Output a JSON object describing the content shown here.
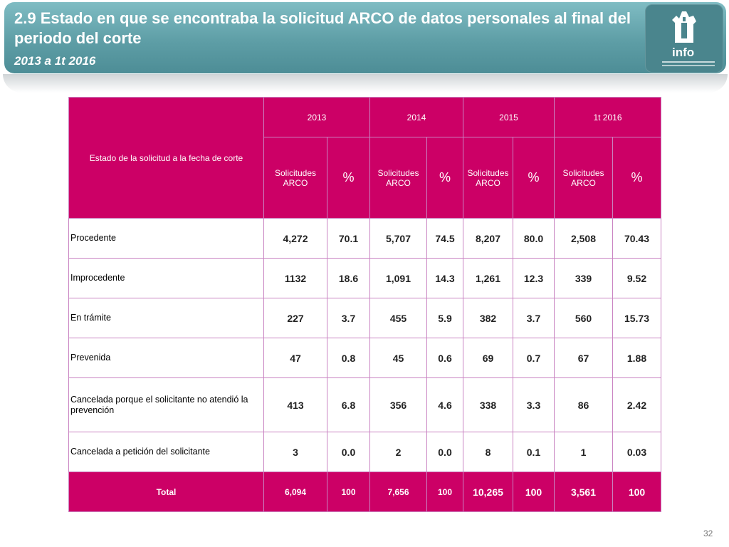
{
  "header": {
    "title": "2.9 Estado en que se encontraba la solicitud ARCO de datos personales al final del periodo del corte",
    "subtitle": "2013 a 1t 2016",
    "logo_text": "info"
  },
  "table": {
    "row_header": "Estado de la solicitud a la fecha de corte",
    "years": [
      "2013",
      "2014",
      "2015",
      "1t 2016"
    ],
    "sub_solicitudes": "Solicitudes ARCO",
    "sub_pct": "%",
    "rows": [
      {
        "label": "Procedente",
        "values": [
          "4,272",
          "70.1",
          "5,707",
          "74.5",
          "8,207",
          "80.0",
          "2,508",
          "70.43"
        ]
      },
      {
        "label": "Improcedente",
        "values": [
          "1132",
          "18.6",
          "1,091",
          "14.3",
          "1,261",
          "12.3",
          "339",
          "9.52"
        ]
      },
      {
        "label": "En trámite",
        "values": [
          "227",
          "3.7",
          "455",
          "5.9",
          "382",
          "3.7",
          "560",
          "15.73"
        ]
      },
      {
        "label": "Prevenida",
        "values": [
          "47",
          "0.8",
          "45",
          "0.6",
          "69",
          "0.7",
          "67",
          "1.88"
        ]
      },
      {
        "label": "Cancelada porque el solicitante no atendió la prevención",
        "values": [
          "413",
          "6.8",
          "356",
          "4.6",
          "338",
          "3.3",
          "86",
          "2.42"
        ]
      },
      {
        "label": "Cancelada a petición del solicitante",
        "values": [
          "3",
          "0.0",
          "2",
          "0.0",
          "8",
          "0.1",
          "1",
          "0.03"
        ]
      }
    ],
    "total": {
      "label": "Total",
      "values": [
        "6,094",
        "100",
        "7,656",
        "100",
        "10,265",
        "100",
        "3,561",
        "100"
      ]
    }
  },
  "footer": {
    "page_number": "32"
  },
  "colors": {
    "accent": "#cc0066",
    "banner": "#5e9ea6"
  }
}
